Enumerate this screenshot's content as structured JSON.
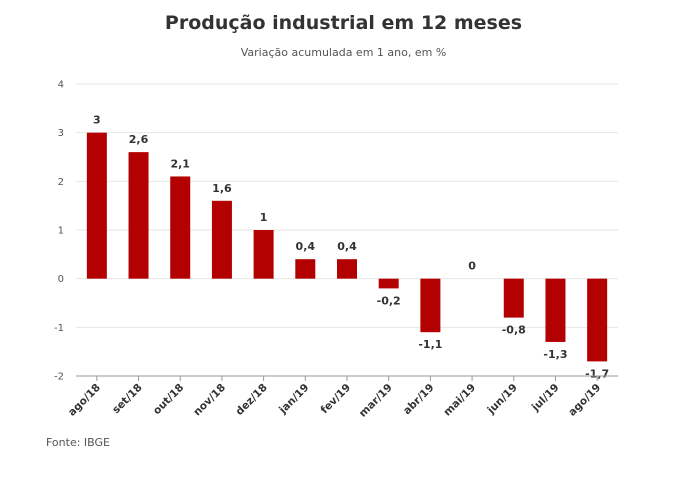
{
  "chart_data": {
    "type": "bar",
    "title": "Produção industrial em 12 meses",
    "subtitle": "Variação acumulada em 1 ano, em %",
    "categories": [
      "ago/18",
      "set/18",
      "out/18",
      "nov/18",
      "dez/18",
      "jan/19",
      "fev/19",
      "mar/19",
      "abr/19",
      "mai/19",
      "jun/19",
      "jul/19",
      "ago/19"
    ],
    "values": [
      3,
      2.6,
      2.1,
      1.6,
      1,
      0.4,
      0.4,
      -0.2,
      -1.1,
      0,
      -0.8,
      -1.3,
      -1.7
    ],
    "data_labels": [
      "3",
      "2,6",
      "2,1",
      "1,6",
      "1",
      "0,4",
      "0,4",
      "-0,2",
      "-1,1",
      "0",
      "-0,8",
      "-1,3",
      "-1,7"
    ],
    "ylim": [
      -2,
      4
    ],
    "yticks": [
      4,
      3,
      2,
      1,
      0,
      -1,
      -2
    ],
    "xlabel": "",
    "ylabel": "",
    "grid": true,
    "bar_color": "#b30000"
  },
  "source": "Fonte: IBGE"
}
